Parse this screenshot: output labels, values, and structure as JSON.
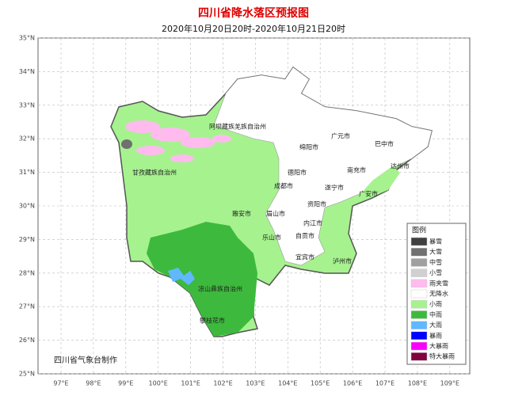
{
  "title": "四川省降水落区预报图",
  "subtitle": "2020年10月20日20时-2020年10月21日20时",
  "latitude_labels": [
    "35°N",
    "34°N",
    "33°N",
    "32°N",
    "31°N",
    "30°N",
    "29°N",
    "28°N",
    "27°N",
    "26°N",
    "25°N"
  ],
  "longitude_labels": [
    "97°E",
    "98°E",
    "99°E",
    "100°E",
    "101°E",
    "102°E",
    "103°E",
    "104°E",
    "105°E",
    "106°E",
    "107°E",
    "108°E",
    "109°E"
  ],
  "places": [
    "阿坝藏族羌族自治州",
    "甘孜藏族自治州",
    "凉山彝族自治州",
    "攀枝花市",
    "雅安市",
    "眉山市",
    "乐山市",
    "成都市",
    "德阳市",
    "绵阳市",
    "广元市",
    "巴中市",
    "达州市",
    "南充市",
    "遂宁市",
    "广安市",
    "资阳市",
    "内江市",
    "自贡市",
    "宜宾市",
    "泸州市"
  ],
  "legend": {
    "title": "图例",
    "items": [
      {
        "label": "暴雪",
        "color": "#404040"
      },
      {
        "label": "大雪",
        "color": "#707070"
      },
      {
        "label": "中雪",
        "color": "#a0a0a0"
      },
      {
        "label": "小雪",
        "color": "#d0d0d0"
      },
      {
        "label": "雨夹雪",
        "color": "#ffbbee"
      },
      {
        "label": "无降水",
        "color": "#ffffff"
      },
      {
        "label": "小雨",
        "color": "#a6f28f"
      },
      {
        "label": "中雨",
        "color": "#3dba3d"
      },
      {
        "label": "大雨",
        "color": "#61b8ff"
      },
      {
        "label": "暴雨",
        "color": "#0000fe"
      },
      {
        "label": "大暴雨",
        "color": "#fa00fa"
      },
      {
        "label": "特大暴雨",
        "color": "#800040"
      }
    ]
  },
  "credit": "四川省气象台制作"
}
